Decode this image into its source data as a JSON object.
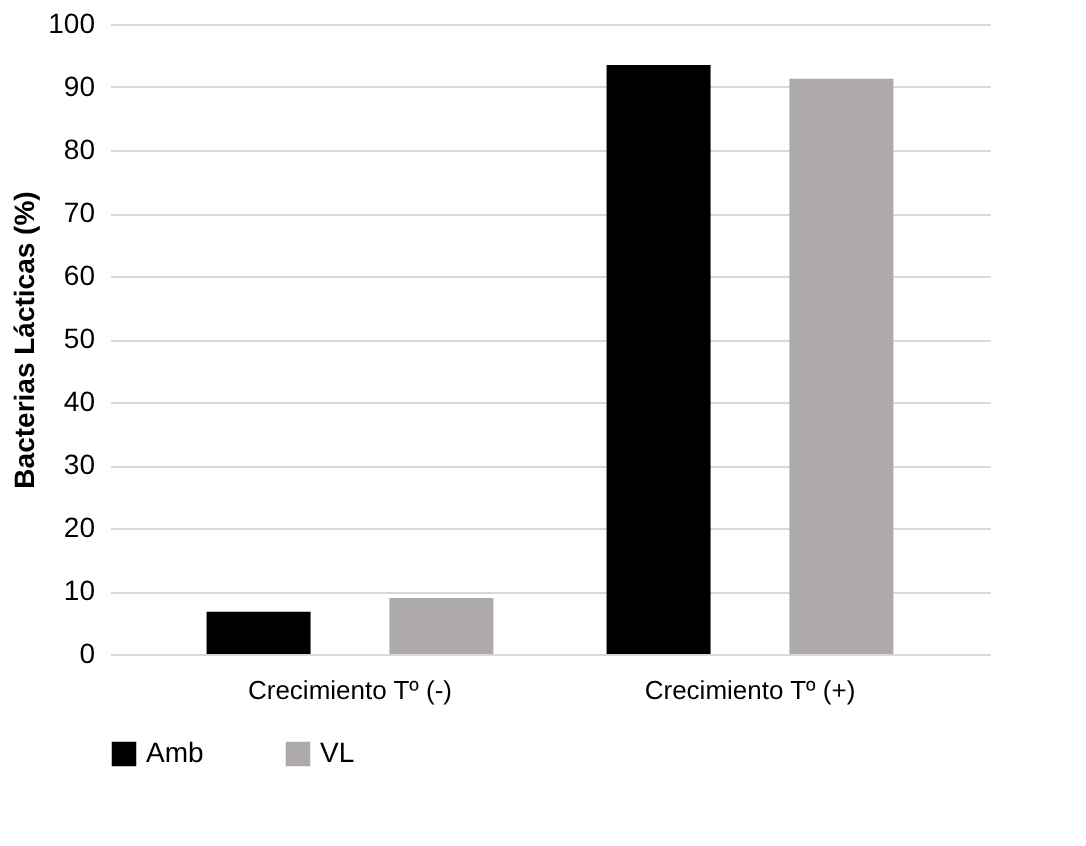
{
  "chart_data": {
    "type": "bar",
    "ylabel": "Bacterias Lácticas (%)",
    "categories": [
      "Crecimiento Tº (-)",
      "Crecimiento Tº (+)"
    ],
    "series": [
      {
        "name": "Amb",
        "color": "#000000",
        "values": [
          6.7,
          93.5
        ]
      },
      {
        "name": "VL",
        "color": "#aeaaaa",
        "values": [
          8.9,
          91.3
        ]
      }
    ],
    "ylim": [
      0,
      100
    ],
    "yticks": [
      0,
      10,
      20,
      30,
      40,
      50,
      60,
      70,
      80,
      90,
      100
    ],
    "grid": "y",
    "legend": "bottom"
  }
}
